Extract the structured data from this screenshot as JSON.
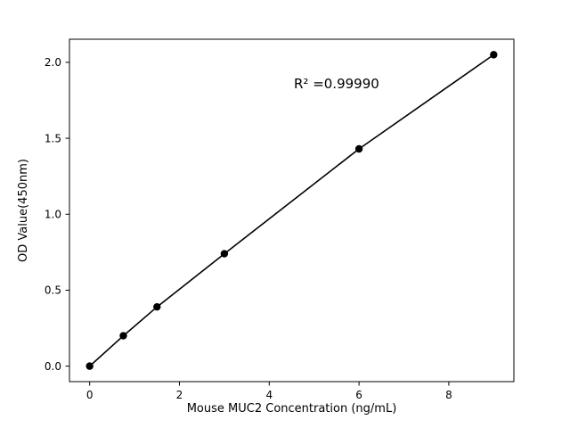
{
  "chart_data": {
    "type": "line",
    "title": "",
    "xlabel": "Mouse MUC2 Concentration (ng/mL)",
    "ylabel": "OD Value(450nm)",
    "x": [
      0,
      0.75,
      1.5,
      3,
      6,
      9
    ],
    "y": [
      0.0,
      0.2,
      0.39,
      0.74,
      1.43,
      2.05
    ],
    "xticks": [
      0,
      2,
      4,
      6,
      8
    ],
    "xtick_labels": [
      "0",
      "2",
      "4",
      "6",
      "8"
    ],
    "yticks": [
      0.0,
      0.5,
      1.0,
      1.5,
      2.0
    ],
    "ytick_labels": [
      "0.0",
      "0.5",
      "1.0",
      "1.5",
      "2.0"
    ],
    "xlim": [
      -0.45,
      9.45
    ],
    "ylim": [
      -0.102,
      2.152
    ],
    "grid": false,
    "legend": "none",
    "annotation": {
      "text": "R² =0.99990",
      "x": 5.5,
      "y": 1.83
    },
    "line_color": "#000000",
    "marker_color": "#000000",
    "marker_shape": "circle",
    "background_color": "#ffffff"
  }
}
